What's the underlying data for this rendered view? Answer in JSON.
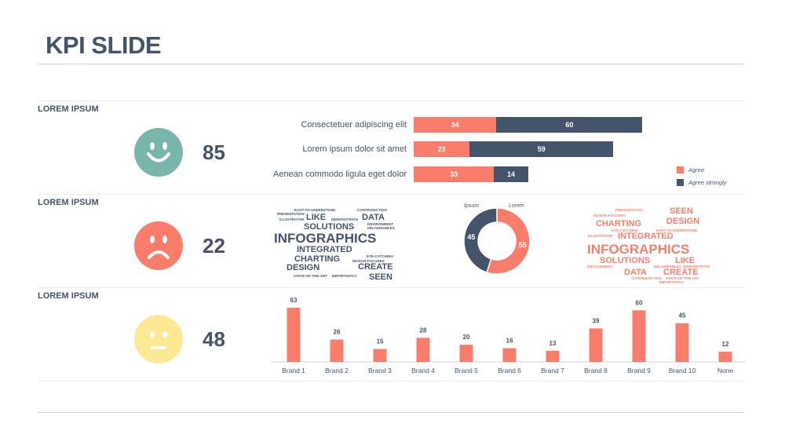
{
  "title": "KPI SLIDE",
  "colors": {
    "salmon": "#fa7d6c",
    "navy": "#44546a",
    "teal": "#7ab5ab",
    "yellow": "#fde894"
  },
  "sections": [
    {
      "label": "LOREM IPSUM",
      "score": "85",
      "face": "happy-face-icon"
    },
    {
      "label": "LOREM IPSUM",
      "score": "22",
      "face": "sad-face-icon"
    },
    {
      "label": "LOREM IPSUM",
      "score": "48",
      "face": "neutral-face-icon"
    }
  ],
  "wordcloud": {
    "small_top": [
      "EASY-TO-UNDERSTAND",
      "CONTRADICTION",
      "PRESENTATION",
      "ILLUSTRATOR",
      "DEMONSTRATE",
      "ENVIRONMENT",
      "DELIVERABLES"
    ],
    "like": "LIKE",
    "data": "DATA",
    "solutions": "SOLUTIONS",
    "infographics": "INFOGRAPHICS",
    "integrated": "INTEGRATED",
    "charting": "CHARTING",
    "eye_catching": "EYE-CATCHING",
    "design_focused": "DESIGN-FOCUSED",
    "design": "DESIGN",
    "create": "CREATE",
    "state_of_the_art": "STATE-OF-THE-ART",
    "importantly": "IMPORTANTLY",
    "seen": "SEEN",
    "engagement": "ENGAGEMENT",
    "storytelling": "STORYTELLING"
  },
  "chart_data": [
    {
      "type": "bar",
      "orientation": "horizontal",
      "stacked": true,
      "categories": [
        "Consectetuer adipiscing elit",
        "Lorem ipsum dolor sit amet",
        "Aenean commodo ligula eget dolor"
      ],
      "series": [
        {
          "name": "Agree",
          "values": [
            34,
            23,
            33
          ],
          "color": "#fa7d6c"
        },
        {
          "name": "Agree strongly",
          "values": [
            60,
            59,
            14
          ],
          "color": "#44546a"
        }
      ],
      "legend": "right"
    },
    {
      "type": "pie",
      "donut": true,
      "slices": [
        {
          "label": "Lorem",
          "value": 55,
          "color": "#fa7d6c"
        },
        {
          "label": "Ipsum",
          "value": 45,
          "color": "#44546a"
        }
      ]
    },
    {
      "type": "bar",
      "categories": [
        "Brand 1",
        "Brand 2",
        "Brand 3",
        "Brand 4",
        "Brand 5",
        "Brand 6",
        "Brand 7",
        "Brand 8",
        "Brand 9",
        "Brand 10",
        "None"
      ],
      "values": [
        63,
        26,
        15,
        28,
        20,
        16,
        13,
        39,
        60,
        45,
        12
      ],
      "color": "#fa7d6c",
      "ylim": [
        0,
        63
      ],
      "grid": false
    }
  ]
}
